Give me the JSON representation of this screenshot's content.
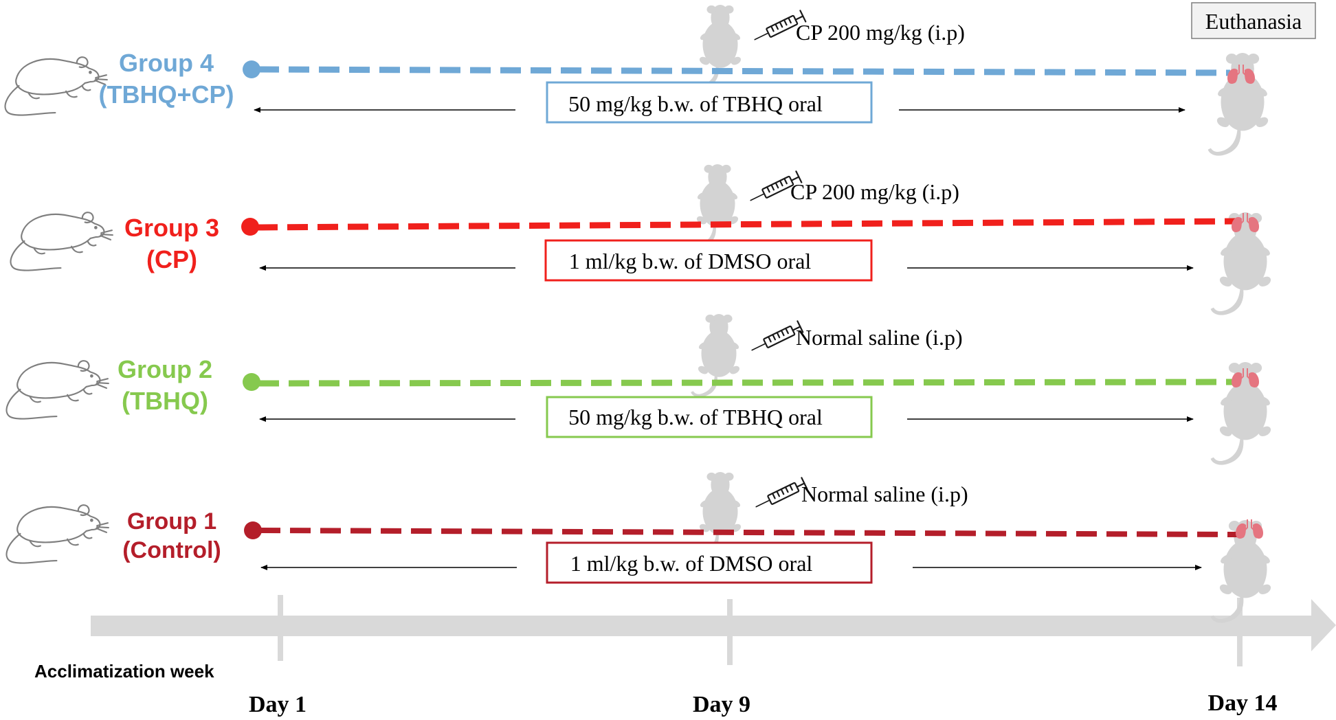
{
  "colors": {
    "group4": "#6FA8D6",
    "group3": "#F0201C",
    "group2": "#86C94E",
    "group1": "#B41E2A",
    "timeline": "#D9D9D9",
    "silhouette": "#D3D3D3",
    "lung": "#E57580",
    "line_art": "#7F7F7F"
  },
  "header": {
    "euthanasia": "Euthanasia"
  },
  "groups": [
    {
      "id": "group4",
      "name": "Group 4",
      "subtitle": "(TBHQ+CP)",
      "injection": "CP 200 mg/kg (i.p)",
      "oral_treatment": "50 mg/kg b.w. of TBHQ oral",
      "icons": [
        "rat-icon",
        "syringe-icon",
        "mouse-silhouette-icon",
        "lungs-icon"
      ]
    },
    {
      "id": "group3",
      "name": "Group 3",
      "subtitle": "(CP)",
      "injection": "CP 200 mg/kg (i.p)",
      "oral_treatment": "1 ml/kg b.w. of DMSO oral",
      "icons": [
        "rat-icon",
        "syringe-icon",
        "mouse-silhouette-icon",
        "lungs-icon"
      ]
    },
    {
      "id": "group2",
      "name": "Group 2",
      "subtitle": "(TBHQ)",
      "injection": "Normal saline (i.p)",
      "oral_treatment": "50 mg/kg b.w. of TBHQ oral",
      "icons": [
        "rat-icon",
        "syringe-icon",
        "mouse-silhouette-icon",
        "lungs-icon"
      ]
    },
    {
      "id": "group1",
      "name": "Group 1",
      "subtitle": "(Control)",
      "injection": "Normal saline (i.p)",
      "oral_treatment": "1 ml/kg b.w. of DMSO oral",
      "icons": [
        "rat-icon",
        "syringe-icon",
        "mouse-silhouette-icon",
        "lungs-icon"
      ]
    }
  ],
  "timeline": {
    "acclimatization_label": "Acclimatization week",
    "day_labels": [
      "Day 1",
      "Day 9",
      "Day 14"
    ]
  }
}
